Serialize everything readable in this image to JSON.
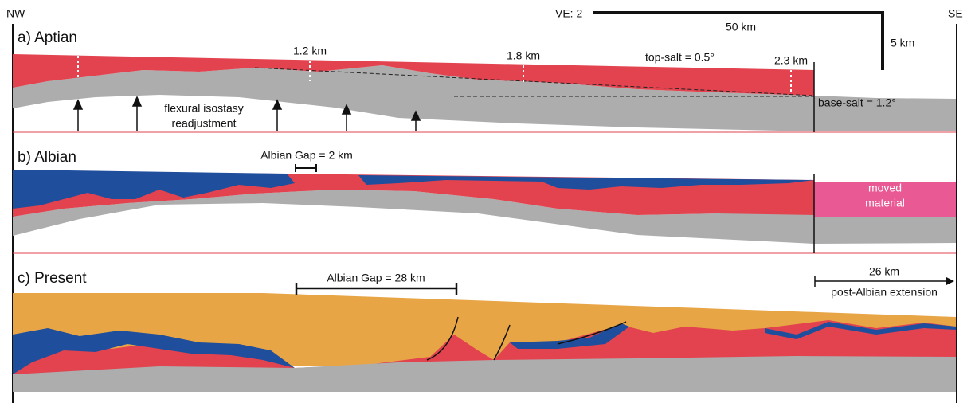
{
  "header": {
    "left": "NW",
    "right": "SE"
  },
  "scale": {
    "ve": "VE: 2",
    "horizontal": "50 km",
    "vertical": "5 km"
  },
  "panels": [
    {
      "label": "a) Aptian",
      "thickness_labels": [
        "1.2 km",
        "1.8 km",
        "2.3 km"
      ],
      "top_salt": "top-salt = 0.5°",
      "base_salt": "base-salt = 1.2°",
      "note": [
        "flexural isostasy",
        "readjustment"
      ]
    },
    {
      "label": "b) Albian",
      "gap": "Albian Gap = 2 km",
      "moved": [
        "moved",
        "material"
      ]
    },
    {
      "label": "c) Present",
      "gap": "Albian Gap = 28 km",
      "extension": "26 km",
      "extension_note": "post-Albian extension"
    }
  ]
}
